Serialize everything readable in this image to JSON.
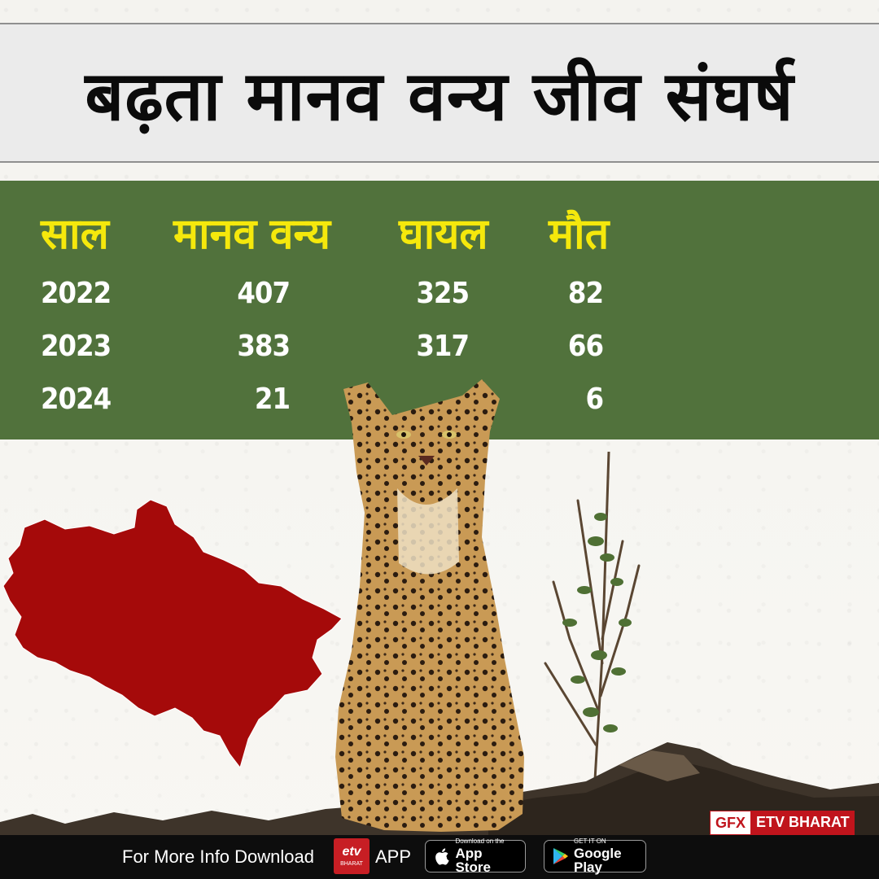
{
  "title": "बढ़ता मानव वन्य जीव संघर्ष",
  "table": {
    "headers": [
      "साल",
      "मानव वन्य",
      "घायल",
      "मौत"
    ],
    "rows": [
      {
        "year": "2022",
        "conflict": "407",
        "injured": "325",
        "deaths": "82"
      },
      {
        "year": "2023",
        "conflict": "383",
        "injured": "317",
        "deaths": "66"
      },
      {
        "year": "2024",
        "conflict": "21",
        "injured": "",
        "deaths": "6"
      }
    ]
  },
  "badge": {
    "gfx": "GFX",
    "brand": "ETV BHARAT"
  },
  "footer": {
    "text": "For More Info Download",
    "logo_text": "etv",
    "logo_sub": "BHARAT",
    "app": "APP",
    "appstore_small": "Download on the",
    "appstore_big": "App Store",
    "playstore_small": "GET IT ON",
    "playstore_big": "Google Play"
  },
  "colors": {
    "panel": "#51723c",
    "header_text": "#f5e80c",
    "map": "#a50a0a",
    "brand_red": "#c0141c"
  },
  "icons": [
    "uttarakhand-map",
    "leopard-image",
    "apple-icon",
    "play-icon"
  ]
}
